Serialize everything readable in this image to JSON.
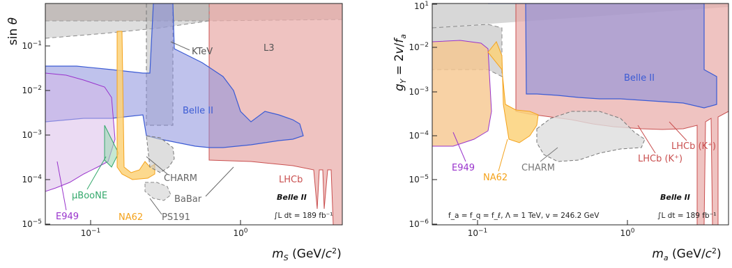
{
  "chart_data": [
    {
      "type": "area",
      "title": "",
      "xlabel": "m_S (GeV/c^2)",
      "ylabel": "sin θ",
      "x_scale": "log",
      "y_scale": "log",
      "xlim": [
        0.05,
        5.0
      ],
      "ylim": [
        1e-05,
        1
      ],
      "x_ticks": [
        "10^-1",
        "10^0"
      ],
      "y_ticks": [
        "10^-5",
        "10^-4",
        "10^-3",
        "10^-2",
        "10^-1"
      ],
      "experiment_label": "Belle II",
      "luminosity_label": "∫L dt = 189 fb⁻¹",
      "series": [
        {
          "name": "L3",
          "color": "#b5a29e",
          "x": [
            0.05,
            5.0
          ],
          "y": [
            0.11,
            0.11
          ]
        },
        {
          "name": "LHCb",
          "color": "#e8a9a7",
          "x": [
            0.28,
            0.5,
            1.0,
            2.0,
            4.0
          ],
          "y": [
            0.0008,
            0.0005,
            0.0003,
            0.0002,
            0.00015
          ]
        },
        {
          "name": "KTeV",
          "color": "#a0a0a0",
          "x": [
            0.05,
            0.2,
            0.36
          ],
          "y": [
            0.06,
            0.05,
            0.04
          ]
        },
        {
          "name": "Belle II",
          "color": "#3b5bd4",
          "x": [
            0.22,
            0.3,
            0.5,
            1.0,
            2.0,
            3.0
          ],
          "y": [
            0.0003,
            0.00025,
            0.00028,
            0.00035,
            0.0006,
            0.001
          ]
        },
        {
          "name": "CHARM",
          "color": "#9e9e9e",
          "x": [
            0.22,
            0.3
          ],
          "y": [
            0.0002,
            8e-05
          ]
        },
        {
          "name": "BaBar",
          "color": "#8c8c8c",
          "x": [
            0.9
          ],
          "y": [
            0.00016
          ]
        },
        {
          "name": "PS191",
          "color": "#bbbbbb",
          "x": [
            0.24,
            0.3
          ],
          "y": [
            5e-05,
            2e-05
          ]
        },
        {
          "name": "NA62",
          "color": "#f4a21b",
          "x": [
            0.12,
            0.2
          ],
          "y": [
            0.0002,
            0.0001
          ]
        },
        {
          "name": "μBooNE",
          "color": "#33a86b",
          "x": [
            0.12,
            0.17
          ],
          "y": [
            0.0003,
            0.0002
          ]
        },
        {
          "name": "E949",
          "color": "#9933cc",
          "x": [
            0.05,
            0.14
          ],
          "y": [
            0.0002,
            5e-05
          ]
        }
      ]
    },
    {
      "type": "area",
      "title": "",
      "xlabel": "m_a (GeV/c^2)",
      "ylabel": "g_Y = 2v/f_a",
      "x_scale": "log",
      "y_scale": "log",
      "xlim": [
        0.05,
        5.0
      ],
      "ylim": [
        1e-06,
        10
      ],
      "x_ticks": [
        "10^-1",
        "10^0"
      ],
      "y_ticks": [
        "10^-6",
        "10^-5",
        "10^-4",
        "10^-3",
        "10^-2",
        "10^-1",
        "10^1"
      ],
      "experiment_label": "Belle II",
      "luminosity_label": "∫L dt = 189 fb⁻¹",
      "parameters_label": "f_a = f_q = f_ℓ, Λ = 1 TeV, v = 246.2 GeV",
      "series": [
        {
          "name": "LHCb (K⁺)",
          "color": "#e8a9a7",
          "x": [
            0.22,
            0.5,
            1.0,
            2.0,
            3.0
          ],
          "y": [
            0.0003,
            0.00035,
            0.0005,
            0.0005,
            0.0006
          ]
        },
        {
          "name": "LHCb (K⁺)",
          "color": "#e8a9a7",
          "x": [
            0.25,
            0.5,
            1.0,
            2.0
          ],
          "y": [
            0.002,
            0.002,
            0.0012,
            0.0012
          ]
        },
        {
          "name": "Belle II",
          "color": "#3b5bd4",
          "x": [
            0.22,
            0.5,
            1.0,
            2.0,
            4.0
          ],
          "y": [
            0.003,
            0.0012,
            0.001,
            0.0012,
            0.0015
          ]
        },
        {
          "name": "CHARM",
          "color": "#9e9e9e",
          "x": [
            0.2,
            0.4,
            0.8,
            1.2
          ],
          "y": [
            0.00015,
            6e-05,
            5e-05,
            0.00012
          ]
        },
        {
          "name": "NA62",
          "color": "#f4a21b",
          "x": [
            0.1,
            0.2
          ],
          "y": [
            0.001,
            0.0003
          ]
        },
        {
          "name": "E949",
          "color": "#9933cc",
          "x": [
            0.05,
            0.14
          ],
          "y": [
            0.0004,
            0.0002
          ]
        }
      ]
    }
  ]
}
